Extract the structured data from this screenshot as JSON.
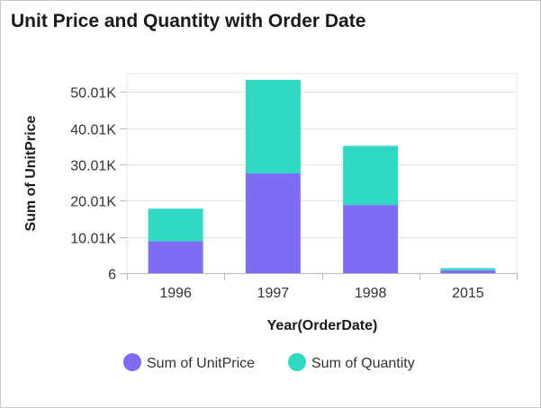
{
  "chart_data": {
    "type": "bar",
    "stacked": true,
    "title": "Unit Price and Quantity with Order Date",
    "xlabel": "Year(OrderDate)",
    "ylabel": "Sum of UnitPrice",
    "categories": [
      "1996",
      "1997",
      "1998",
      "2015"
    ],
    "ylim": [
      6,
      55000
    ],
    "yticks": [
      6,
      10006,
      20006,
      30006,
      40006,
      50006
    ],
    "ytick_labels": [
      "6",
      "10.01K",
      "20.01K",
      "30.01K",
      "40.01K",
      "50.01K"
    ],
    "series": [
      {
        "name": "Sum of UnitPrice",
        "color": "#7f6cf6",
        "values": [
          8800,
          27500,
          18800,
          800
        ]
      },
      {
        "name": "Sum of Quantity",
        "color": "#2fd9c4",
        "values": [
          9000,
          25800,
          16300,
          600
        ]
      }
    ],
    "legend_position": "bottom",
    "grid": true
  }
}
